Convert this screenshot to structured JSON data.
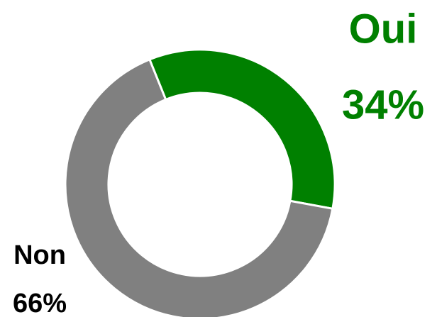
{
  "chart_data": {
    "type": "donut",
    "categories": [
      "Oui",
      "Non"
    ],
    "values": [
      34,
      66
    ],
    "value_labels": [
      "34%",
      "66%"
    ],
    "colors": [
      "#008000",
      "#808080"
    ]
  }
}
